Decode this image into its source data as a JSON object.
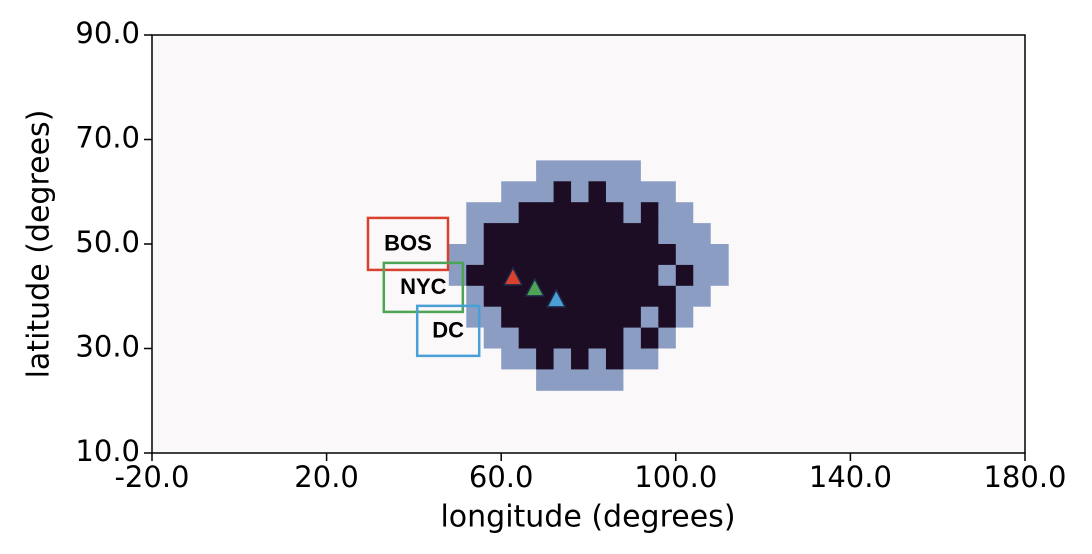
{
  "chart_data": {
    "type": "heatmap",
    "xlabel": "longitude (degrees)",
    "ylabel": "latitude (degrees)",
    "xlim": [
      -20,
      180
    ],
    "ylim": [
      10,
      90
    ],
    "xticks": [
      {
        "value": -20,
        "label": "-20.0"
      },
      {
        "value": 20,
        "label": "20.0"
      },
      {
        "value": 60,
        "label": "60.0"
      },
      {
        "value": 100,
        "label": "100.0"
      },
      {
        "value": 140,
        "label": "140.0"
      },
      {
        "value": 180,
        "label": "180.0"
      }
    ],
    "yticks": [
      {
        "value": 10,
        "label": "10.0"
      },
      {
        "value": 30,
        "label": "30.0"
      },
      {
        "value": 50,
        "label": "50.0"
      },
      {
        "value": 70,
        "label": "70.0"
      },
      {
        "value": 90,
        "label": "90.0"
      }
    ],
    "background": "#fbf8fa",
    "colors": [
      "#fbf8fa",
      "#8b9dc3",
      "#1c0c24"
    ],
    "x": [
      50,
      54,
      58,
      62,
      66,
      70,
      74,
      78,
      82,
      86,
      90,
      94,
      98,
      102,
      106,
      110
    ],
    "y": [
      64,
      60,
      56,
      52,
      48,
      44,
      40,
      36,
      32,
      28,
      24
    ],
    "z": [
      [
        0,
        0,
        0,
        0,
        0,
        1,
        1,
        1,
        1,
        1,
        1,
        0,
        0,
        0,
        0,
        0
      ],
      [
        0,
        0,
        0,
        1,
        1,
        1,
        2,
        1,
        2,
        1,
        1,
        1,
        1,
        0,
        0,
        0
      ],
      [
        0,
        1,
        1,
        1,
        2,
        2,
        2,
        2,
        2,
        2,
        1,
        2,
        1,
        1,
        0,
        0
      ],
      [
        0,
        1,
        2,
        2,
        2,
        2,
        2,
        2,
        2,
        2,
        2,
        2,
        1,
        1,
        1,
        0
      ],
      [
        1,
        1,
        2,
        2,
        2,
        2,
        2,
        2,
        2,
        2,
        2,
        2,
        2,
        1,
        1,
        1
      ],
      [
        1,
        2,
        2,
        2,
        2,
        2,
        2,
        2,
        2,
        2,
        2,
        2,
        1,
        2,
        1,
        1
      ],
      [
        0,
        1,
        2,
        2,
        2,
        2,
        2,
        2,
        2,
        2,
        2,
        2,
        2,
        1,
        1,
        0
      ],
      [
        0,
        1,
        1,
        2,
        2,
        2,
        2,
        2,
        2,
        2,
        2,
        1,
        2,
        1,
        0,
        0
      ],
      [
        0,
        0,
        1,
        1,
        2,
        2,
        2,
        2,
        2,
        2,
        1,
        2,
        1,
        0,
        0,
        0
      ],
      [
        0,
        0,
        0,
        1,
        1,
        2,
        1,
        2,
        1,
        2,
        1,
        1,
        0,
        0,
        0,
        0
      ],
      [
        0,
        0,
        0,
        0,
        0,
        1,
        1,
        1,
        1,
        1,
        0,
        0,
        0,
        0,
        0,
        0
      ]
    ],
    "points": [
      {
        "label": "BOS",
        "x": 62.7,
        "y": 43.7,
        "color": "#d9412f"
      },
      {
        "label": "NYC",
        "x": 67.7,
        "y": 41.6,
        "color": "#4ea454"
      },
      {
        "label": "DC",
        "x": 72.6,
        "y": 39.5,
        "color": "#4a9fd6"
      }
    ]
  }
}
